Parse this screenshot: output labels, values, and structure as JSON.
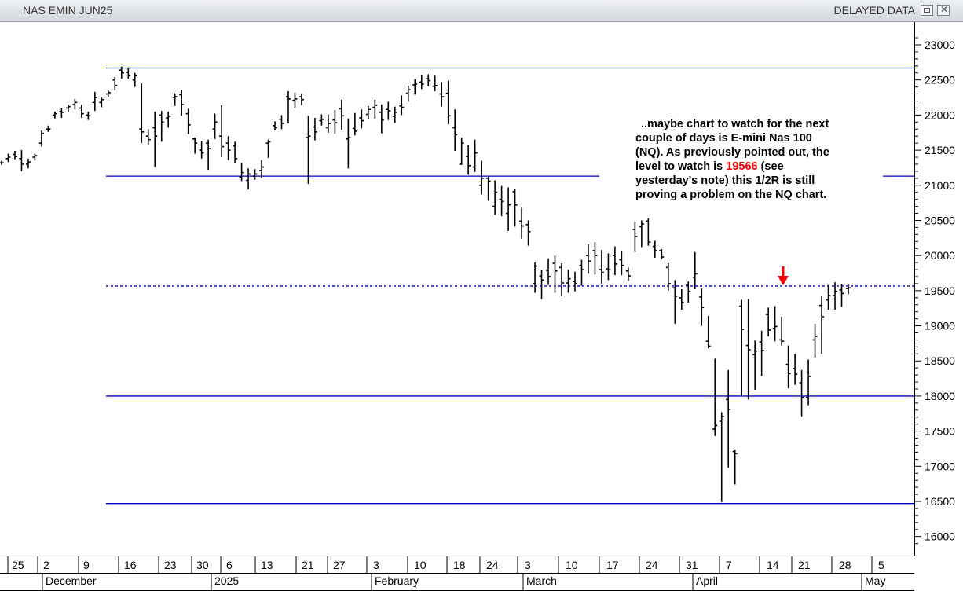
{
  "window": {
    "title": "NAS EMIN JUN25",
    "status": "DELAYED DATA",
    "restore_icon": "restore-icon",
    "close_icon": "close-icon"
  },
  "note": {
    "line1": "..maybe chart to watch for the next",
    "line2": "couple of days is E-mini Nas 100",
    "line3": "(NQ). As previously pointed out, the",
    "line4_pre": "level to watch is ",
    "line4_value": "19566",
    "line4_post": " (see",
    "line5": "yesterday's note) this 1/2R is still",
    "line6": "proving a problem on the NQ chart.",
    "highlight_color": "#ff0000"
  },
  "chart_data": {
    "type": "ohlc",
    "title": "NAS EMIN JUN25",
    "y_ticks": [
      16000,
      16500,
      17000,
      17500,
      18000,
      18500,
      19000,
      19500,
      20000,
      20500,
      21000,
      21500,
      22000,
      22500,
      23000
    ],
    "ylim": [
      15800,
      23200
    ],
    "x_day_ticks": [
      "25",
      "2",
      "9",
      "16",
      "23",
      "30",
      "6",
      "13",
      "21",
      "27",
      "3",
      "10",
      "18",
      "24",
      "3",
      "10",
      "17",
      "24",
      "31",
      "7",
      "14",
      "21",
      "28",
      "5"
    ],
    "x_month_labels": [
      "December",
      "2025",
      "February",
      "March",
      "April",
      "May"
    ],
    "levels": [
      {
        "value": 22670,
        "style": "solid",
        "color": "#0000cc"
      },
      {
        "value": 21130,
        "style": "solid",
        "color": "#0000cc"
      },
      {
        "value": 19566,
        "style": "dashed",
        "color": "#0000cc"
      },
      {
        "value": 18000,
        "style": "solid",
        "color": "#0000cc"
      },
      {
        "value": 16470,
        "style": "solid",
        "color": "#0000cc"
      }
    ],
    "arrow_color": "#ff0000",
    "bars": [
      [
        21320,
        21350,
        21290,
        21320
      ],
      [
        21380,
        21450,
        21330,
        21400
      ],
      [
        21440,
        21490,
        21370,
        21410
      ],
      [
        21380,
        21500,
        21200,
        21300
      ],
      [
        21300,
        21380,
        21240,
        21330
      ],
      [
        21400,
        21450,
        21350,
        21420
      ],
      [
        21600,
        21780,
        21550,
        21740
      ],
      [
        21800,
        21850,
        21760,
        21800
      ],
      [
        22000,
        22050,
        21950,
        22020
      ],
      [
        22050,
        22100,
        21960,
        22040
      ],
      [
        22100,
        22150,
        22040,
        22120
      ],
      [
        22150,
        22230,
        22080,
        22180
      ],
      [
        22100,
        22150,
        21960,
        22020
      ],
      [
        22000,
        22050,
        21930,
        21990
      ],
      [
        22180,
        22330,
        22060,
        22250
      ],
      [
        22180,
        22250,
        22110,
        22220
      ],
      [
        22300,
        22350,
        22260,
        22320
      ],
      [
        22500,
        22540,
        22350,
        22420
      ],
      [
        22640,
        22690,
        22520,
        22600
      ],
      [
        22610,
        22680,
        22520,
        22560
      ],
      [
        22500,
        22600,
        22400,
        22560
      ],
      [
        21800,
        22450,
        21600,
        21760
      ],
      [
        21700,
        21800,
        21580,
        21650
      ],
      [
        21820,
        22050,
        21260,
        21700
      ],
      [
        22000,
        22060,
        21620,
        21900
      ],
      [
        21960,
        22050,
        21820,
        21980
      ],
      [
        22250,
        22310,
        22130,
        22260
      ],
      [
        22290,
        22360,
        21990,
        22150
      ],
      [
        22020,
        22090,
        21730,
        21860
      ],
      [
        21660,
        21680,
        21450,
        21600
      ],
      [
        21500,
        21630,
        21380,
        21460
      ],
      [
        21600,
        21650,
        21220,
        21520
      ],
      [
        21800,
        22020,
        21660,
        21900
      ],
      [
        21700,
        22140,
        21400,
        21550
      ],
      [
        21600,
        21700,
        21360,
        21500
      ],
      [
        21560,
        21620,
        21310,
        21380
      ],
      [
        21120,
        21320,
        21060,
        21180
      ],
      [
        21070,
        21240,
        20940,
        21160
      ],
      [
        21130,
        21230,
        21080,
        21160
      ],
      [
        21210,
        21360,
        21100,
        21260
      ],
      [
        21600,
        21650,
        21390,
        21620
      ],
      [
        21850,
        21910,
        21780,
        21820
      ],
      [
        21940,
        22000,
        21800,
        21880
      ],
      [
        22260,
        22340,
        21880,
        22230
      ],
      [
        22210,
        22320,
        22100,
        22230
      ],
      [
        22260,
        22300,
        22140,
        22220
      ],
      [
        21680,
        21990,
        21020,
        21700
      ],
      [
        21830,
        21960,
        21640,
        21760
      ],
      [
        21920,
        22010,
        21850,
        21940
      ],
      [
        21820,
        22010,
        21750,
        21880
      ],
      [
        21930,
        22070,
        21730,
        21890
      ],
      [
        22090,
        22220,
        21790,
        21990
      ],
      [
        21660,
        21950,
        21240,
        21680
      ],
      [
        21810,
        22030,
        21710,
        21770
      ],
      [
        21960,
        22080,
        21810,
        21920
      ],
      [
        22010,
        22130,
        21940,
        22080
      ],
      [
        22110,
        22220,
        21950,
        22140
      ],
      [
        22040,
        22150,
        21740,
        21930
      ],
      [
        22080,
        22190,
        21930,
        22060
      ],
      [
        21980,
        22120,
        21890,
        22040
      ],
      [
        22130,
        22280,
        22000,
        22110
      ],
      [
        22310,
        22420,
        22190,
        22360
      ],
      [
        22430,
        22510,
        22290,
        22440
      ],
      [
        22470,
        22570,
        22370,
        22440
      ],
      [
        22520,
        22580,
        22410,
        22490
      ],
      [
        22410,
        22560,
        22340,
        22420
      ],
      [
        22300,
        22470,
        22120,
        22260
      ],
      [
        22310,
        22490,
        21870,
        21990
      ],
      [
        21820,
        22080,
        21490,
        21720
      ],
      [
        21300,
        21680,
        21290,
        21600
      ],
      [
        21410,
        21570,
        21150,
        21280
      ],
      [
        21260,
        21650,
        21190,
        21460
      ],
      [
        21000,
        21350,
        20870,
        21100
      ],
      [
        21100,
        21120,
        20780,
        21060
      ],
      [
        20700,
        21070,
        20580,
        20900
      ],
      [
        20800,
        20990,
        20560,
        20770
      ],
      [
        20600,
        20970,
        20350,
        20720
      ],
      [
        20910,
        20950,
        20410,
        20720
      ],
      [
        20490,
        20680,
        20240,
        20420
      ],
      [
        20440,
        20500,
        20140,
        20340
      ],
      [
        19600,
        19900,
        19470,
        19850
      ],
      [
        19710,
        19790,
        19380,
        19650
      ],
      [
        19790,
        19960,
        19580,
        19700
      ],
      [
        19890,
        20000,
        19470,
        19780
      ],
      [
        19830,
        19890,
        19420,
        19610
      ],
      [
        19610,
        19800,
        19470,
        19670
      ],
      [
        19630,
        19770,
        19490,
        19600
      ],
      [
        19860,
        19940,
        19570,
        19800
      ],
      [
        20000,
        20160,
        19740,
        19920
      ],
      [
        20070,
        20190,
        19730,
        20000
      ],
      [
        19800,
        20080,
        19600,
        19760
      ],
      [
        19810,
        20030,
        19650,
        19800
      ],
      [
        20000,
        20130,
        19720,
        19880
      ],
      [
        19940,
        20060,
        19720,
        19860
      ],
      [
        19780,
        19830,
        19640,
        19710
      ],
      [
        20370,
        20480,
        20050,
        20270
      ],
      [
        20410,
        20500,
        20120,
        20450
      ],
      [
        20490,
        20530,
        20140,
        20190
      ],
      [
        20130,
        20210,
        19970,
        20070
      ],
      [
        20070,
        20090,
        19950,
        19980
      ],
      [
        19830,
        19890,
        19500,
        19600
      ],
      [
        19540,
        19650,
        19030,
        19420
      ],
      [
        19400,
        19520,
        19230,
        19330
      ],
      [
        19580,
        19630,
        19330,
        19490
      ],
      [
        19690,
        20050,
        19520,
        19740
      ],
      [
        19410,
        19530,
        19000,
        19260
      ],
      [
        18780,
        19140,
        18680,
        18710
      ],
      [
        17530,
        18530,
        17430,
        17580
      ],
      [
        17640,
        17770,
        16490,
        17710
      ],
      [
        17950,
        18370,
        16980,
        17810
      ],
      [
        17210,
        17240,
        16740,
        17180
      ],
      [
        19280,
        19370,
        18000,
        18950
      ],
      [
        18720,
        19380,
        17950,
        18660
      ],
      [
        18590,
        18790,
        18090,
        18640
      ],
      [
        18770,
        18930,
        18290,
        18650
      ],
      [
        19160,
        19260,
        18850,
        18940
      ],
      [
        18960,
        19280,
        18780,
        18990
      ],
      [
        18800,
        19130,
        18720,
        18780
      ],
      [
        18450,
        18720,
        18110,
        18320
      ],
      [
        18390,
        18600,
        18160,
        18310
      ],
      [
        18190,
        18370,
        17710,
        17980
      ],
      [
        17980,
        18520,
        17870,
        18280
      ],
      [
        18800,
        19030,
        18550,
        18850
      ],
      [
        19290,
        19430,
        18600,
        19130
      ],
      [
        19370,
        19580,
        19230,
        19430
      ],
      [
        19430,
        19620,
        19230,
        19490
      ],
      [
        19510,
        19590,
        19270,
        19460
      ],
      [
        19530,
        19590,
        19450,
        19540
      ]
    ]
  }
}
